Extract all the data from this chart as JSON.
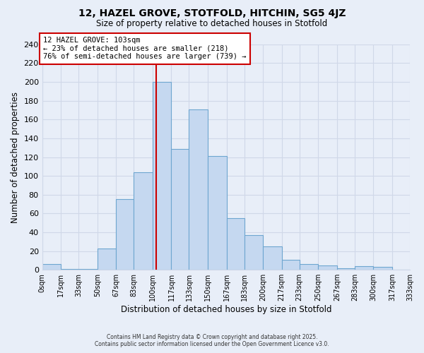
{
  "title": "12, HAZEL GROVE, STOTFOLD, HITCHIN, SG5 4JZ",
  "subtitle": "Size of property relative to detached houses in Stotfold",
  "xlabel": "Distribution of detached houses by size in Stotfold",
  "ylabel": "Number of detached properties",
  "bin_edges": [
    0,
    17,
    33,
    50,
    67,
    83,
    100,
    117,
    133,
    150,
    167,
    183,
    200,
    217,
    233,
    250,
    267,
    283,
    300,
    317,
    333
  ],
  "bin_labels": [
    "0sqm",
    "17sqm",
    "33sqm",
    "50sqm",
    "67sqm",
    "83sqm",
    "100sqm",
    "117sqm",
    "133sqm",
    "150sqm",
    "167sqm",
    "183sqm",
    "200sqm",
    "217sqm",
    "233sqm",
    "250sqm",
    "267sqm",
    "283sqm",
    "300sqm",
    "317sqm",
    "333sqm"
  ],
  "counts": [
    6,
    1,
    1,
    23,
    75,
    104,
    200,
    129,
    171,
    121,
    55,
    37,
    25,
    11,
    6,
    5,
    2,
    4,
    3,
    0
  ],
  "bar_facecolor": "#c5d8f0",
  "bar_edgecolor": "#6ea6d0",
  "vline_x": 103,
  "vline_color": "#cc0000",
  "annotation_title": "12 HAZEL GROVE: 103sqm",
  "annotation_line1": "← 23% of detached houses are smaller (218)",
  "annotation_line2": "76% of semi-detached houses are larger (739) →",
  "annotation_box_edgecolor": "#cc0000",
  "annotation_box_facecolor": "#ffffff",
  "ylim": [
    0,
    240
  ],
  "yticks": [
    0,
    20,
    40,
    60,
    80,
    100,
    120,
    140,
    160,
    180,
    200,
    220,
    240
  ],
  "grid_color": "#d0d8e8",
  "background_color": "#e8eef8",
  "footer1": "Contains HM Land Registry data © Crown copyright and database right 2025.",
  "footer2": "Contains public sector information licensed under the Open Government Licence v3.0."
}
